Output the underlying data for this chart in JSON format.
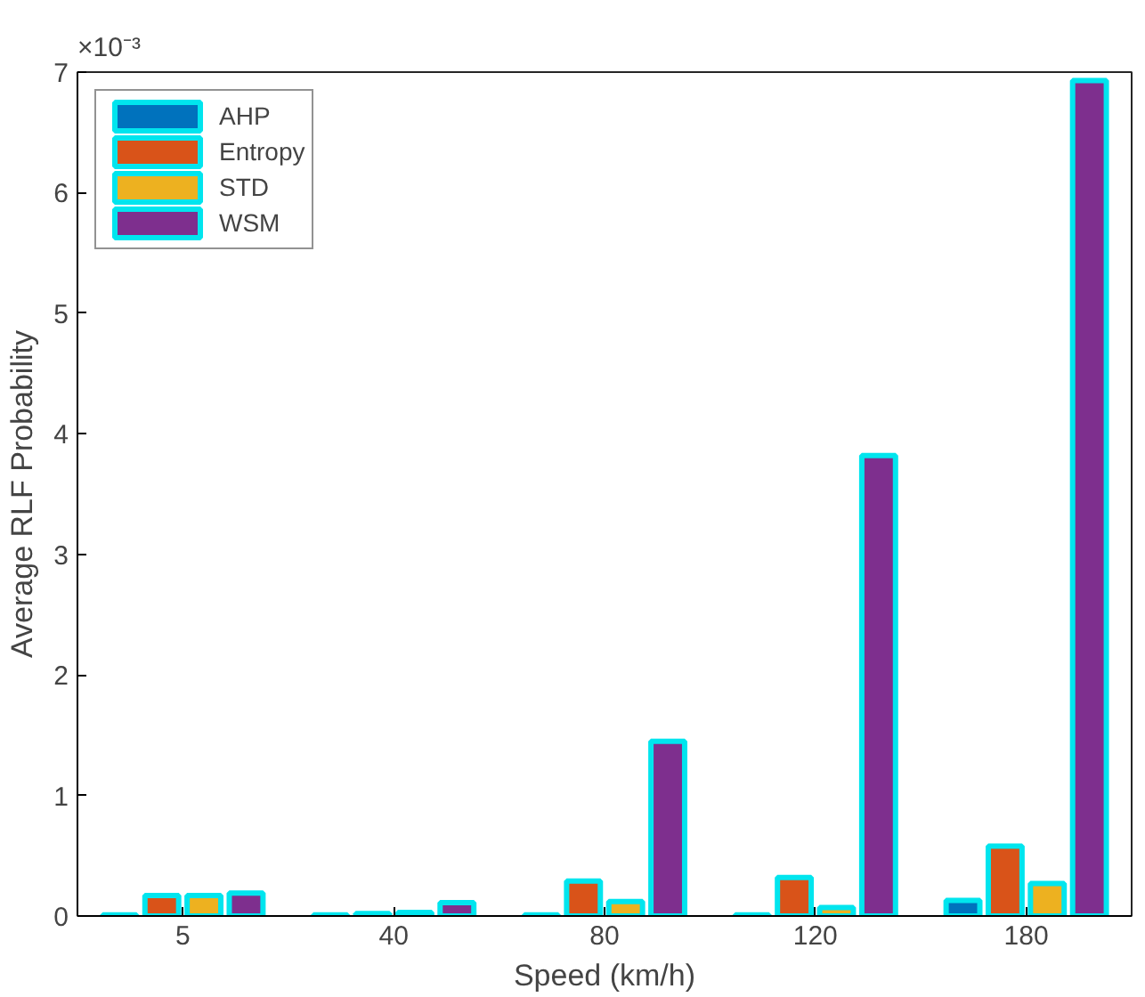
{
  "chart_data": {
    "type": "bar",
    "xlabel": "Speed (km/h)",
    "ylabel": "Average RLF Probability",
    "annotations": [
      "×10⁻³"
    ],
    "categories": [
      "5",
      "40",
      "80",
      "120",
      "180"
    ],
    "series": [
      {
        "name": "AHP",
        "color": "#0072bd",
        "values": [
          0.01,
          0.01,
          0.01,
          0.01,
          0.13
        ]
      },
      {
        "name": "Entropy",
        "color": "#d95319",
        "values": [
          0.17,
          0.02,
          0.29,
          0.32,
          0.58
        ]
      },
      {
        "name": "STD",
        "color": "#edb120",
        "values": [
          0.17,
          0.03,
          0.12,
          0.07,
          0.27
        ]
      },
      {
        "name": "WSM",
        "color": "#7e2f8e",
        "values": [
          0.19,
          0.11,
          1.45,
          3.82,
          6.93
        ]
      }
    ],
    "ylim": [
      0,
      7
    ],
    "yticks": [
      0,
      1,
      2,
      3,
      4,
      5,
      6,
      7
    ],
    "grid": false,
    "legend": "top left"
  }
}
